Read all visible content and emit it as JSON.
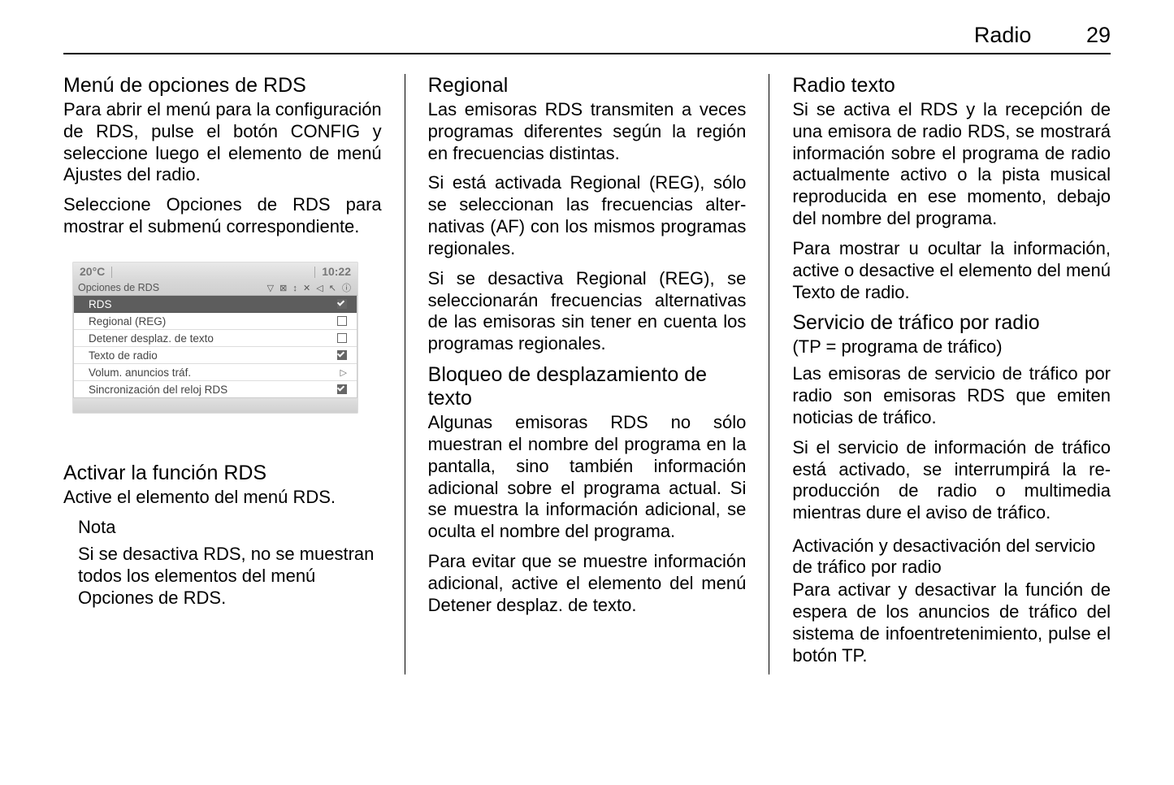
{
  "header": {
    "section": "Radio",
    "page": "29"
  },
  "col1": {
    "h_rds_menu": "Menú de opciones de RDS",
    "p_rds_menu_1": "Para abrir el menú para la configura­ción de RDS, pulse el botón CONFIG y seleccione luego el ele­mento de menú Ajustes del radio.",
    "p_rds_menu_2": "Seleccione Opciones de RDS para mostrar el submenú correspondiente.",
    "h_activate": "Activar la función RDS",
    "p_activate": "Active el elemento del menú RDS.",
    "note_label": "Nota",
    "note_body": "Si se desactiva RDS, no se mues­tran todos los elementos del menú Opciones de RDS."
  },
  "screenshot": {
    "temp": "20°C",
    "time": "10:22",
    "subtitle": "Opciones de RDS",
    "icons_strip": "▽  ⊠  ↕  ✕  ◁  ↖  ⓘ",
    "rows": [
      {
        "label": "RDS",
        "ctl": "check_on"
      },
      {
        "label": "Regional (REG)",
        "ctl": "check_off"
      },
      {
        "label": "Detener desplaz. de texto",
        "ctl": "check_off"
      },
      {
        "label": "Texto de radio",
        "ctl": "check_on"
      },
      {
        "label": "Volum. anuncios tráf.",
        "ctl": "arrow"
      },
      {
        "label": "Sincronización del reloj RDS",
        "ctl": "check_on"
      }
    ]
  },
  "col2": {
    "h_regional": "Regional",
    "p_regional_1": "Las emisoras RDS transmiten a ve­ces programas diferentes según la región en frecuencias distintas.",
    "p_regional_2": "Si está activada Regional (REG), sólo se seleccionan las frecuencias alter­nativas (AF) con los mismos progra­mas regionales.",
    "p_regional_3": "Si se desactiva Regional (REG), se seleccionarán frecuencias alternati­vas de las emisoras sin tener en cuenta los programas regionales.",
    "h_scroll": "Bloqueo de desplazamiento de texto",
    "p_scroll_1": "Algunas emisoras RDS no sólo muestran el nombre del programa en la pantalla, sino también información adicional sobre el programa actual. Si se muestra la información adicional, se oculta el nombre del programa.",
    "p_scroll_2": "Para evitar que se muestre informa­ción adicional, active el elemento del menú Detener desplaz. de texto."
  },
  "col3": {
    "h_radiotext": "Radio texto",
    "p_radiotext_1": "Si se activa el RDS y la recepción de una emisora de radio RDS, se mos­trará información sobre el programa de radio actualmente activo o la pista musical reproducida en ese mo­mento, debajo del nombre del pro­grama.",
    "p_radiotext_2": "Para mostrar u ocultar la información, active o desactive el elemento del menú Texto de radio.",
    "h_traffic": "Servicio de tráfico por radio",
    "p_tp": "(TP = programa de tráfico)",
    "p_traffic_1": "Las emisoras de servicio de tráfico por radio son emisoras RDS que emi­ten noticias de tráfico.",
    "p_traffic_2": "Si el servicio de información de tráfico está activado, se interrumpirá la re­producción de radio o multimedia mientras dure el aviso de tráfico.",
    "h_traffic_toggle": "Activación y desactivación del servicio de tráfico por radio",
    "p_traffic_toggle": "Para activar y desactivar la función de espera de los anuncios de tráfico del sistema de infoentretenimiento, pulse el botón TP."
  }
}
